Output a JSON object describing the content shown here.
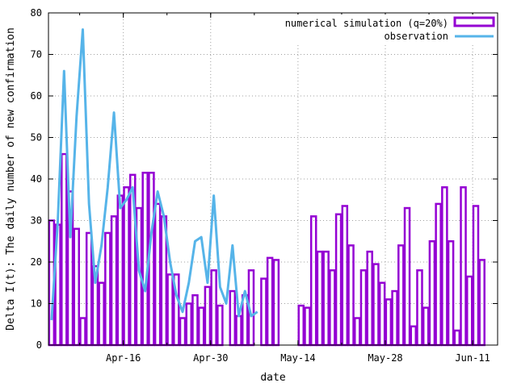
{
  "chart_data": {
    "type": "bar",
    "xlabel": "date",
    "ylabel": "Delta I(t): The daily number of new confirmation",
    "ylim": [
      0,
      80
    ],
    "yticks": [
      "0",
      "10",
      "20",
      "30",
      "40",
      "50",
      "60",
      "70",
      "80"
    ],
    "xticks": [
      {
        "date": "2020-04-16",
        "label": "Apr-16"
      },
      {
        "date": "2020-04-30",
        "label": "Apr-30"
      },
      {
        "date": "2020-05-14",
        "label": "May-14"
      },
      {
        "date": "2020-05-28",
        "label": "May-28"
      },
      {
        "date": "2020-06-11",
        "label": "Jun-11"
      }
    ],
    "xlim": [
      "2020-04-04",
      "2020-06-14"
    ],
    "grid": true,
    "legend_position": "top-right",
    "series": [
      {
        "name": "numerical simulation (q=20%)",
        "style": "bars",
        "color": "#9400d3",
        "dates": [
          "2020-04-04",
          "2020-04-05",
          "2020-04-06",
          "2020-04-07",
          "2020-04-08",
          "2020-04-09",
          "2020-04-10",
          "2020-04-11",
          "2020-04-12",
          "2020-04-13",
          "2020-04-14",
          "2020-04-15",
          "2020-04-16",
          "2020-04-17",
          "2020-04-18",
          "2020-04-19",
          "2020-04-20",
          "2020-04-21",
          "2020-04-22",
          "2020-04-23",
          "2020-04-24",
          "2020-04-25",
          "2020-04-26",
          "2020-04-27",
          "2020-04-28",
          "2020-04-29",
          "2020-04-30",
          "2020-05-01",
          "2020-05-02",
          "2020-05-03",
          "2020-05-04",
          "2020-05-05",
          "2020-05-06",
          "2020-05-07",
          "2020-05-08",
          "2020-05-09",
          "2020-05-10",
          "2020-05-11",
          "2020-05-12",
          "2020-05-13",
          "2020-05-14",
          "2020-05-15",
          "2020-05-16",
          "2020-05-17",
          "2020-05-18",
          "2020-05-19",
          "2020-05-20",
          "2020-05-21",
          "2020-05-22",
          "2020-05-23",
          "2020-05-24",
          "2020-05-25",
          "2020-05-26",
          "2020-05-27",
          "2020-05-28",
          "2020-05-29",
          "2020-05-30",
          "2020-05-31",
          "2020-06-01",
          "2020-06-02",
          "2020-06-03",
          "2020-06-04",
          "2020-06-05",
          "2020-06-06",
          "2020-06-07",
          "2020-06-08",
          "2020-06-09",
          "2020-06-10",
          "2020-06-11",
          "2020-06-12",
          "2020-06-13",
          "2020-06-14"
        ],
        "values": [
          30,
          29,
          46,
          37,
          28,
          6.5,
          27,
          19,
          15,
          27,
          31,
          36,
          38,
          41,
          33,
          41.5,
          41.5,
          34,
          31,
          17,
          17,
          6.5,
          10,
          12,
          9,
          14,
          18,
          9.5,
          0,
          13,
          7,
          12,
          18,
          0,
          16,
          21,
          20.5,
          0,
          0,
          0,
          9.5,
          9,
          31,
          22.5,
          22.5,
          18,
          31.5,
          33.5,
          24,
          6.5,
          18,
          22.5,
          19.5,
          15,
          11,
          13,
          24,
          33,
          4.5,
          18,
          9,
          25,
          34,
          38,
          25,
          3.5,
          38,
          16.5,
          33.5,
          20.5,
          0,
          0
        ]
      },
      {
        "name": "observation",
        "style": "line",
        "color": "#56b4e9",
        "dates": [
          "2020-04-04",
          "2020-04-05",
          "2020-04-06",
          "2020-04-07",
          "2020-04-08",
          "2020-04-09",
          "2020-04-10",
          "2020-04-11",
          "2020-04-12",
          "2020-04-13",
          "2020-04-14",
          "2020-04-15",
          "2020-04-16",
          "2020-04-17",
          "2020-04-18",
          "2020-04-19",
          "2020-04-20",
          "2020-04-21",
          "2020-04-22",
          "2020-04-23",
          "2020-04-24",
          "2020-04-25",
          "2020-04-26",
          "2020-04-27",
          "2020-04-28",
          "2020-04-29",
          "2020-04-30",
          "2020-05-01",
          "2020-05-02",
          "2020-05-03",
          "2020-05-04",
          "2020-05-05",
          "2020-05-06",
          "2020-05-07"
        ],
        "values": [
          6,
          30,
          66,
          26,
          55,
          76,
          34,
          15,
          24,
          38,
          56,
          33,
          35,
          38,
          18,
          13,
          27,
          37,
          31,
          20,
          12,
          8,
          15,
          25,
          26,
          15,
          36,
          14,
          10,
          24,
          7,
          13,
          7,
          8
        ]
      }
    ]
  }
}
